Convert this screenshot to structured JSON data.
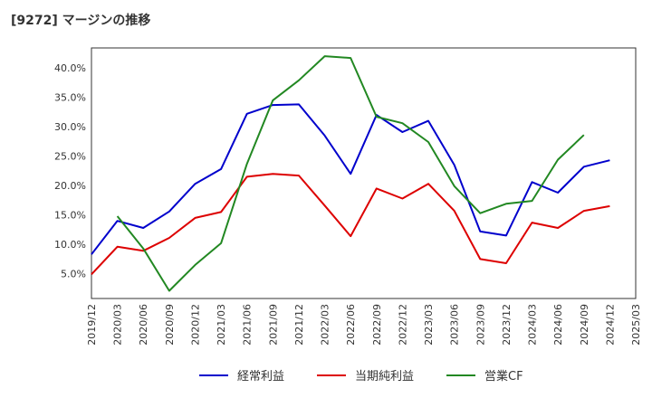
{
  "title": "[9272]  マージンの推移",
  "chart_data": {
    "type": "line",
    "title": "[9272]  マージンの推移",
    "xlabel": "",
    "ylabel": "",
    "categories": [
      "2019/12",
      "2020/03",
      "2020/06",
      "2020/09",
      "2020/12",
      "2021/03",
      "2021/06",
      "2021/09",
      "2021/12",
      "2022/03",
      "2022/06",
      "2022/09",
      "2022/12",
      "2023/03",
      "2023/06",
      "2023/09",
      "2023/12",
      "2024/03",
      "2024/06",
      "2024/09",
      "2024/12",
      "2025/03"
    ],
    "y_ticks": [
      5,
      10,
      15,
      20,
      25,
      30,
      35,
      40
    ],
    "y_tick_labels": [
      "5.0%",
      "10.0%",
      "15.0%",
      "20.0%",
      "25.0%",
      "30.0%",
      "35.0%",
      "40.0%"
    ],
    "ylim": [
      0.8,
      43.4
    ],
    "grid": true,
    "legend_position": "bottom",
    "series": [
      {
        "name": "経常利益",
        "color": "#0000cc",
        "values": [
          8.3,
          14.0,
          12.8,
          15.6,
          20.3,
          22.8,
          32.2,
          33.7,
          33.8,
          28.5,
          22.0,
          32.0,
          29.1,
          31.0,
          23.5,
          12.2,
          11.5,
          20.6,
          18.8,
          23.2,
          24.3,
          null
        ]
      },
      {
        "name": "当期純利益",
        "color": "#dd0000",
        "values": [
          4.9,
          9.6,
          8.9,
          11.1,
          14.5,
          15.5,
          21.5,
          22.0,
          21.7,
          16.6,
          11.4,
          19.5,
          17.8,
          20.3,
          15.7,
          7.5,
          6.8,
          13.7,
          12.8,
          15.7,
          16.5,
          null
        ]
      },
      {
        "name": "営業CF",
        "color": "#228822",
        "values": [
          null,
          14.8,
          9.3,
          2.1,
          6.5,
          10.2,
          23.7,
          34.5,
          37.9,
          42.0,
          41.7,
          31.7,
          30.6,
          27.4,
          19.9,
          15.3,
          16.9,
          17.4,
          24.4,
          28.6,
          null,
          null
        ]
      }
    ]
  }
}
